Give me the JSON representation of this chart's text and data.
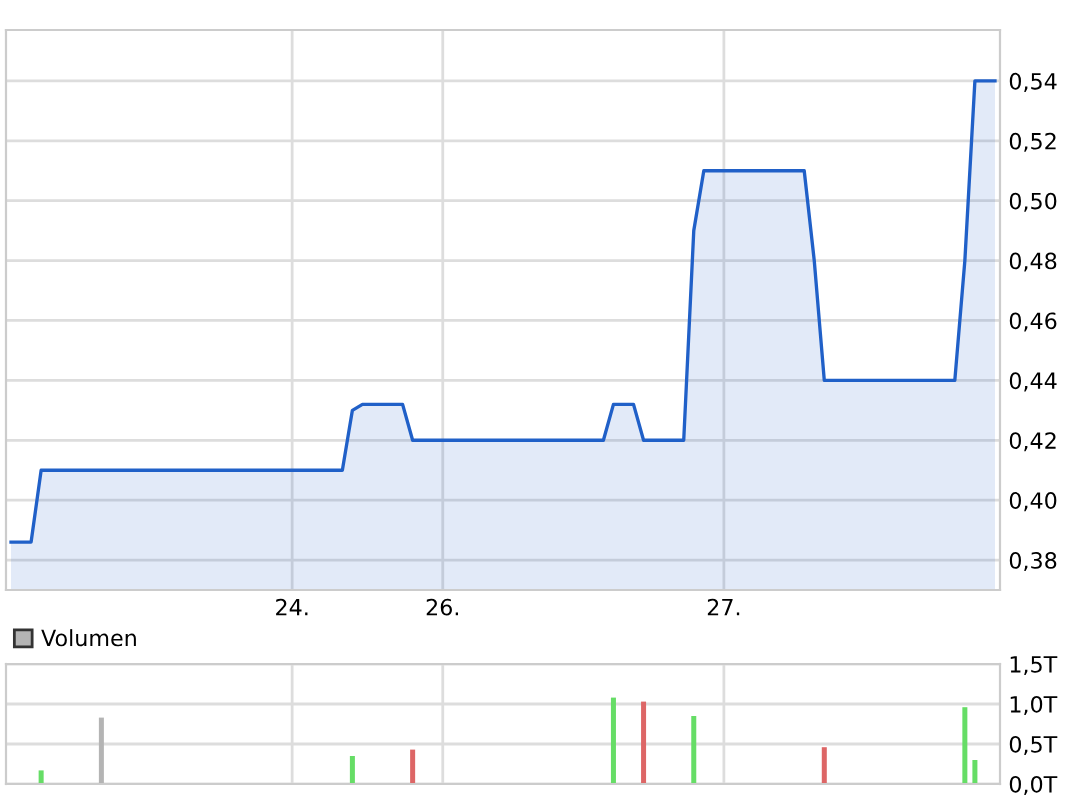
{
  "chart_data": [
    {
      "type": "area",
      "ylim": [
        0.37,
        0.557
      ],
      "categories": [
        null,
        null,
        null,
        null,
        null,
        null,
        null,
        null,
        null,
        null,
        null,
        null,
        null,
        null,
        null,
        null,
        null,
        null,
        null,
        null,
        null,
        null,
        null,
        null,
        null,
        null,
        null,
        null,
        "24.",
        null,
        null,
        null,
        null,
        null,
        null,
        null,
        null,
        null,
        null,
        null,
        null,
        null,
        null,
        "26.",
        null,
        null,
        null,
        null,
        null,
        null,
        null,
        null,
        null,
        null,
        null,
        null,
        null,
        null,
        null,
        null,
        null,
        null,
        null,
        null,
        null,
        null,
        null,
        null,
        null,
        null,
        null,
        "27.",
        null,
        null,
        null,
        null,
        null,
        null,
        null,
        null,
        null,
        null,
        null,
        null,
        null,
        null,
        null,
        null,
        null,
        null,
        null,
        null,
        null,
        null,
        null,
        null,
        null,
        null,
        null
      ],
      "yticks": [
        {
          "value": 0.38,
          "label": "0,38"
        },
        {
          "value": 0.4,
          "label": "0,40"
        },
        {
          "value": 0.42,
          "label": "0,42"
        },
        {
          "value": 0.44,
          "label": "0,44"
        },
        {
          "value": 0.46,
          "label": "0,46"
        },
        {
          "value": 0.48,
          "label": "0,48"
        },
        {
          "value": 0.5,
          "label": "0,50"
        },
        {
          "value": 0.52,
          "label": "0,52"
        },
        {
          "value": 0.54,
          "label": "0,54"
        }
      ],
      "grid": true,
      "series": [
        {
          "color": "#2060c8",
          "values": [
            0.386,
            0.386,
            0.386,
            0.41,
            0.41,
            0.41,
            0.41,
            0.41,
            0.41,
            0.41,
            0.41,
            0.41,
            0.41,
            0.41,
            0.41,
            0.41,
            0.41,
            0.41,
            0.41,
            0.41,
            0.41,
            0.41,
            0.41,
            0.41,
            0.41,
            0.41,
            0.41,
            0.41,
            0.41,
            0.41,
            0.41,
            0.41,
            0.41,
            0.41,
            0.43,
            0.432,
            0.432,
            0.432,
            0.432,
            0.432,
            0.42,
            0.42,
            0.42,
            0.42,
            0.42,
            0.42,
            0.42,
            0.42,
            0.42,
            0.42,
            0.42,
            0.42,
            0.42,
            0.42,
            0.42,
            0.42,
            0.42,
            0.42,
            0.42,
            0.42,
            0.432,
            0.432,
            0.432,
            0.42,
            0.42,
            0.42,
            0.42,
            0.42,
            0.49,
            0.51,
            0.51,
            0.51,
            0.51,
            0.51,
            0.51,
            0.51,
            0.51,
            0.51,
            0.51,
            0.51,
            0.48,
            0.44,
            0.44,
            0.44,
            0.44,
            0.44,
            0.44,
            0.44,
            0.44,
            0.44,
            0.44,
            0.44,
            0.44,
            0.44,
            0.44,
            0.48,
            0.54,
            0.54,
            0.54
          ]
        }
      ]
    },
    {
      "type": "bar",
      "ylim": [
        0,
        1.5
      ],
      "categories": [
        null,
        null,
        null,
        null,
        null,
        null,
        null,
        null,
        null,
        null,
        null,
        null,
        null,
        null,
        null,
        null,
        null,
        null,
        null,
        null,
        null,
        null,
        null,
        null,
        null,
        null,
        null,
        null,
        "24.",
        null,
        null,
        null,
        null,
        null,
        null,
        null,
        null,
        null,
        null,
        null,
        null,
        null,
        null,
        "26.",
        null,
        null,
        null,
        null,
        null,
        null,
        null,
        null,
        null,
        null,
        null,
        null,
        null,
        null,
        null,
        null,
        null,
        null,
        null,
        null,
        null,
        null,
        null,
        null,
        null,
        null,
        null,
        "27.",
        null,
        null,
        null,
        null,
        null,
        null,
        null,
        null,
        null,
        null,
        null,
        null,
        null,
        null,
        null,
        null,
        null,
        null,
        null,
        null,
        null,
        null,
        null,
        null,
        null,
        null,
        null
      ],
      "yticks": [
        {
          "value": 0,
          "label": "0,0T"
        },
        {
          "value": 0.5,
          "label": "0,5T"
        },
        {
          "value": 1.0,
          "label": "1,0T"
        },
        {
          "value": 1.5,
          "label": "1,5T"
        }
      ],
      "grid": true,
      "tick_labels": "y",
      "legend": "top left",
      "series": [
        {
          "name": "Volumen",
          "color": "#b4b4b4",
          "values": [
            null,
            null,
            null,
            0.17,
            null,
            null,
            null,
            null,
            null,
            0.83,
            null,
            null,
            null,
            null,
            null,
            null,
            null,
            null,
            null,
            null,
            null,
            null,
            null,
            null,
            null,
            null,
            null,
            null,
            null,
            null,
            null,
            null,
            null,
            null,
            0.35,
            null,
            null,
            null,
            null,
            null,
            0.43,
            null,
            null,
            null,
            null,
            null,
            null,
            null,
            null,
            null,
            null,
            null,
            null,
            null,
            null,
            null,
            null,
            null,
            null,
            null,
            1.08,
            null,
            null,
            1.03,
            null,
            null,
            null,
            null,
            0.85,
            null,
            null,
            null,
            null,
            null,
            null,
            null,
            null,
            null,
            null,
            null,
            null,
            0.46,
            null,
            null,
            null,
            null,
            null,
            null,
            null,
            null,
            null,
            null,
            null,
            null,
            null,
            0.96,
            0.3,
            null,
            null
          ],
          "colors": [
            null,
            null,
            null,
            "#66dd66",
            null,
            null,
            null,
            null,
            null,
            "#b4b4b4",
            null,
            null,
            null,
            null,
            null,
            null,
            null,
            null,
            null,
            null,
            null,
            null,
            null,
            null,
            null,
            null,
            null,
            null,
            null,
            null,
            null,
            null,
            null,
            null,
            "#66dd66",
            null,
            null,
            null,
            null,
            null,
            "#dd6666",
            null,
            null,
            null,
            null,
            null,
            null,
            null,
            null,
            null,
            null,
            null,
            null,
            null,
            null,
            null,
            null,
            null,
            null,
            null,
            "#66dd66",
            null,
            null,
            "#dd6666",
            null,
            null,
            null,
            null,
            "#66dd66",
            null,
            null,
            null,
            null,
            null,
            null,
            null,
            null,
            null,
            null,
            null,
            null,
            "#dd6666",
            null,
            null,
            null,
            null,
            null,
            null,
            null,
            null,
            null,
            null,
            null,
            null,
            null,
            "#66dd66",
            "#66dd66",
            null,
            null
          ]
        }
      ]
    }
  ]
}
